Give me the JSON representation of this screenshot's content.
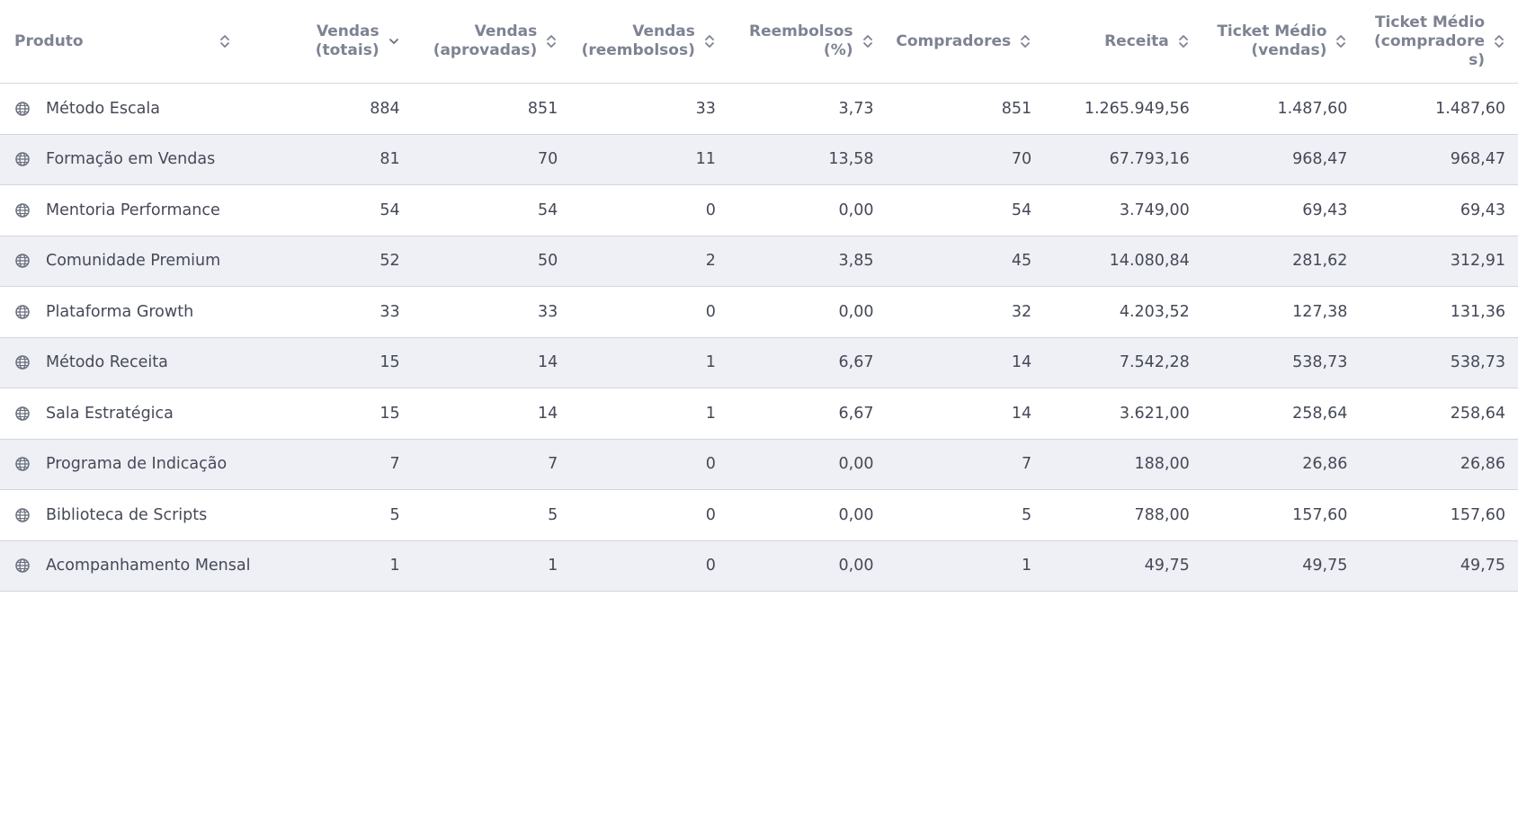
{
  "table": {
    "columns": [
      {
        "key": "produto",
        "label": "Produto",
        "sort": "both"
      },
      {
        "key": "vendas_totais",
        "label": "Vendas\n(totais)",
        "sort": "down"
      },
      {
        "key": "vendas_aprovadas",
        "label": "Vendas\n(aprovadas)",
        "sort": "both"
      },
      {
        "key": "vendas_reembolsos",
        "label": "Vendas\n(reembolsos)",
        "sort": "both"
      },
      {
        "key": "reembolsos_pct",
        "label": "Reembolsos\n(%)",
        "sort": "both"
      },
      {
        "key": "compradores",
        "label": "Compradores",
        "sort": "both"
      },
      {
        "key": "receita",
        "label": "Receita",
        "sort": "both"
      },
      {
        "key": "ticket_vendas",
        "label": "Ticket Médio\n(vendas)",
        "sort": "both"
      },
      {
        "key": "ticket_compradores",
        "label": "Ticket Médio\n(compradore\ns)",
        "sort": "both"
      }
    ],
    "rows": [
      {
        "produto": "Método Escala",
        "vendas_totais": "884",
        "vendas_aprovadas": "851",
        "vendas_reembolsos": "33",
        "reembolsos_pct": "3,73",
        "compradores": "851",
        "receita": "1.265.949,56",
        "ticket_vendas": "1.487,60",
        "ticket_compradores": "1.487,60"
      },
      {
        "produto": "Formação em Vendas",
        "vendas_totais": "81",
        "vendas_aprovadas": "70",
        "vendas_reembolsos": "11",
        "reembolsos_pct": "13,58",
        "compradores": "70",
        "receita": "67.793,16",
        "ticket_vendas": "968,47",
        "ticket_compradores": "968,47"
      },
      {
        "produto": "Mentoria Performance",
        "vendas_totais": "54",
        "vendas_aprovadas": "54",
        "vendas_reembolsos": "0",
        "reembolsos_pct": "0,00",
        "compradores": "54",
        "receita": "3.749,00",
        "ticket_vendas": "69,43",
        "ticket_compradores": "69,43"
      },
      {
        "produto": "Comunidade Premium",
        "vendas_totais": "52",
        "vendas_aprovadas": "50",
        "vendas_reembolsos": "2",
        "reembolsos_pct": "3,85",
        "compradores": "45",
        "receita": "14.080,84",
        "ticket_vendas": "281,62",
        "ticket_compradores": "312,91"
      },
      {
        "produto": "Plataforma Growth",
        "vendas_totais": "33",
        "vendas_aprovadas": "33",
        "vendas_reembolsos": "0",
        "reembolsos_pct": "0,00",
        "compradores": "32",
        "receita": "4.203,52",
        "ticket_vendas": "127,38",
        "ticket_compradores": "131,36"
      },
      {
        "produto": "Método Receita",
        "vendas_totais": "15",
        "vendas_aprovadas": "14",
        "vendas_reembolsos": "1",
        "reembolsos_pct": "6,67",
        "compradores": "14",
        "receita": "7.542,28",
        "ticket_vendas": "538,73",
        "ticket_compradores": "538,73"
      },
      {
        "produto": "Sala Estratégica",
        "vendas_totais": "15",
        "vendas_aprovadas": "14",
        "vendas_reembolsos": "1",
        "reembolsos_pct": "6,67",
        "compradores": "14",
        "receita": "3.621,00",
        "ticket_vendas": "258,64",
        "ticket_compradores": "258,64"
      },
      {
        "produto": "Programa de Indicação",
        "vendas_totais": "7",
        "vendas_aprovadas": "7",
        "vendas_reembolsos": "0",
        "reembolsos_pct": "0,00",
        "compradores": "7",
        "receita": "188,00",
        "ticket_vendas": "26,86",
        "ticket_compradores": "26,86"
      },
      {
        "produto": "Biblioteca de Scripts",
        "vendas_totais": "5",
        "vendas_aprovadas": "5",
        "vendas_reembolsos": "0",
        "reembolsos_pct": "0,00",
        "compradores": "5",
        "receita": "788,00",
        "ticket_vendas": "157,60",
        "ticket_compradores": "157,60"
      },
      {
        "produto": "Acompanhamento Mensal",
        "vendas_totais": "1",
        "vendas_aprovadas": "1",
        "vendas_reembolsos": "0",
        "reembolsos_pct": "0,00",
        "compradores": "1",
        "receita": "49,75",
        "ticket_vendas": "49,75",
        "ticket_compradores": "49,75"
      }
    ],
    "row_icon": "globe-icon",
    "colors": {
      "header_text": "#7e8392",
      "body_text": "#454957",
      "stripe": "#eef0f5",
      "border": "#d3d5dc"
    }
  }
}
